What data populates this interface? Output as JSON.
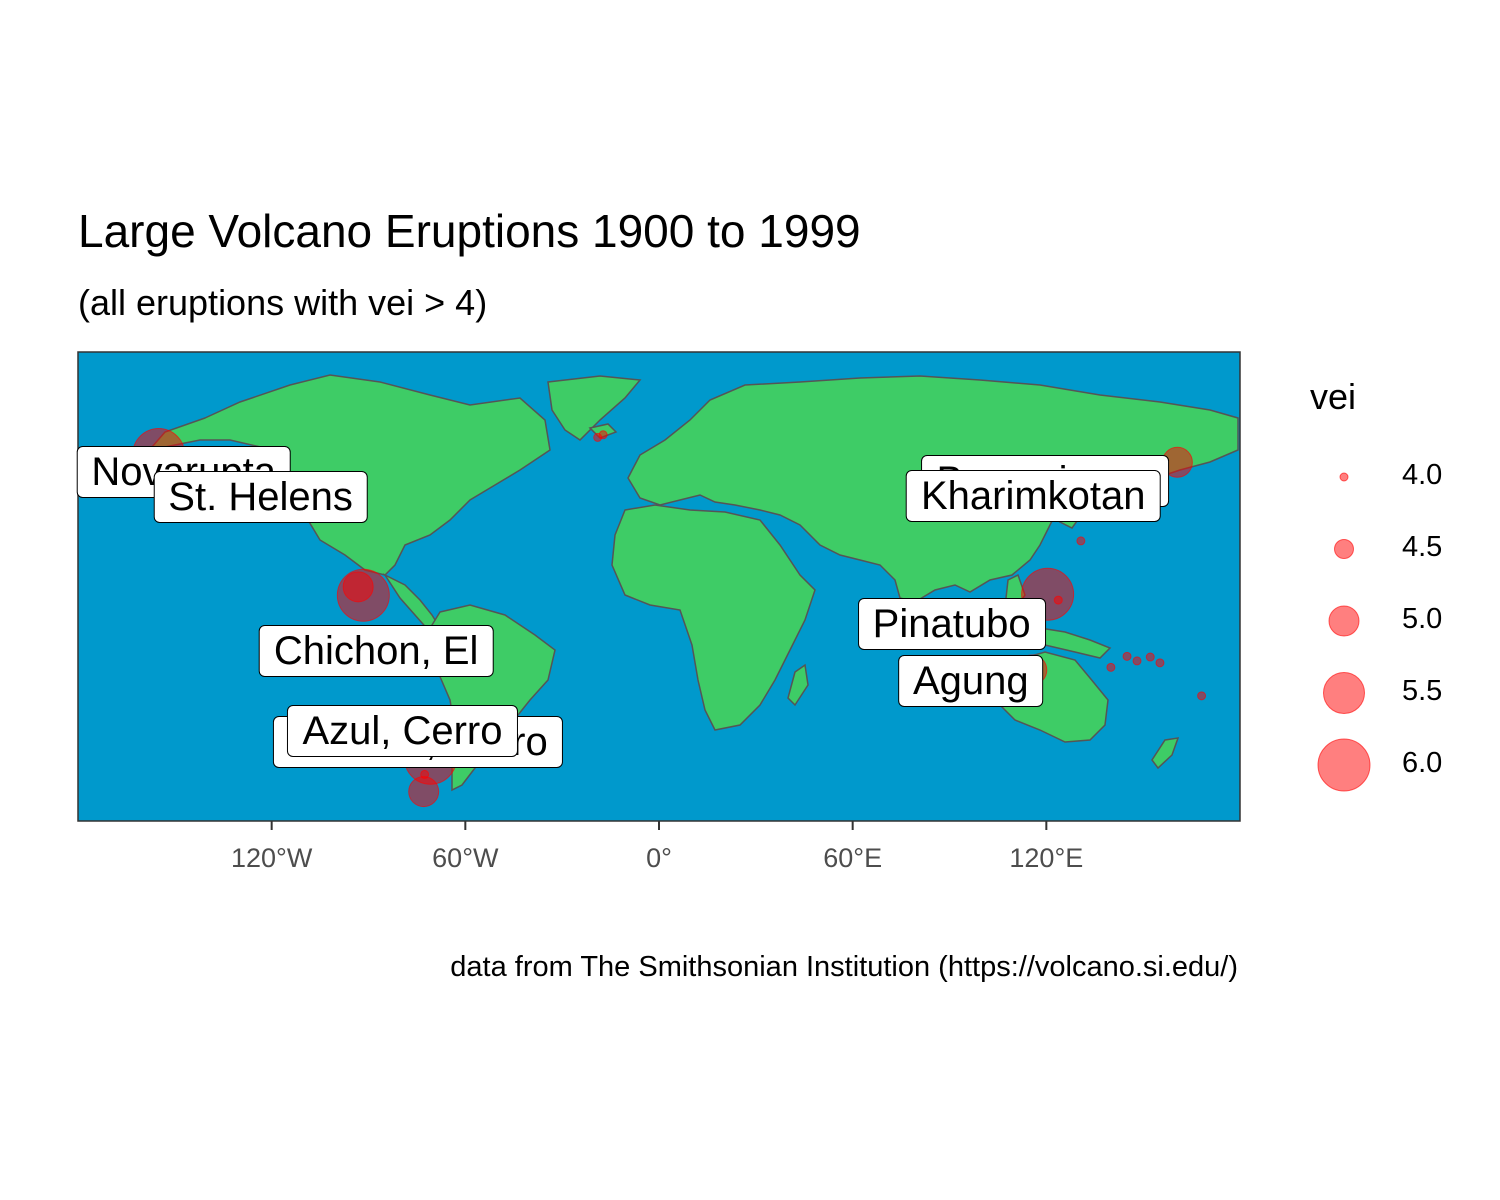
{
  "chart_data": {
    "type": "scatter",
    "title": "Large Volcano Eruptions 1900 to 1999",
    "subtitle": "(all eruptions with vei > 4)",
    "caption": "data from The Smithsonian Institution (https://volcano.si.edu/)",
    "x_range": [
      -180,
      180
    ],
    "y_range": [
      -55,
      90
    ],
    "x_ticks": [
      {
        "value": -120,
        "label": "120°W"
      },
      {
        "value": -60,
        "label": "60°W"
      },
      {
        "value": 0,
        "label": "0°"
      },
      {
        "value": 60,
        "label": "60°E"
      },
      {
        "value": 120,
        "label": "120°E"
      }
    ],
    "colors": {
      "ocean": "#0099cc",
      "land": "#3ecc66",
      "border": "#555555",
      "point": "#ff0000"
    },
    "size_legend": {
      "title": "vei",
      "values": [
        "4.0",
        "4.5",
        "5.0",
        "5.5",
        "6.0"
      ]
    },
    "labels": [
      {
        "name": "Novarupta",
        "lon": -155,
        "lat": 58.3,
        "vei": 6
      },
      {
        "name": "St. Helens",
        "lon": -122.2,
        "lat": 46.2,
        "vei": 5
      },
      {
        "name": "Chichon, El",
        "lon": -93.2,
        "lat": 17.4,
        "vei": 5
      },
      {
        "name": "Azul, Cerro",
        "lon": -70.8,
        "lat": -35.6,
        "vei": 6
      },
      {
        "name": "Hudson, Cerro",
        "lon": -72.9,
        "lat": -45.9,
        "vei": 5
      },
      {
        "name": "Bezymianny",
        "lon": 160.6,
        "lat": 55.9,
        "vei": 5
      },
      {
        "name": "Kharimkotan",
        "lon": 152.2,
        "lat": 49.1,
        "vei": 5
      },
      {
        "name": "Pinatubo",
        "lon": 120.4,
        "lat": 15.1,
        "vei": 6
      },
      {
        "name": "Agung",
        "lon": 115.5,
        "lat": -8.3,
        "vei": 5
      }
    ],
    "points": [
      {
        "lon": -155.0,
        "lat": 58.3,
        "vei": 6
      },
      {
        "lon": -122.2,
        "lat": 46.2,
        "vei": 5
      },
      {
        "lon": -91.6,
        "lat": 14.8,
        "vei": 6
      },
      {
        "lon": -93.2,
        "lat": 17.4,
        "vei": 5
      },
      {
        "lon": -91.5,
        "lat": -0.4,
        "vei": 4
      },
      {
        "lon": -77.4,
        "lat": -1.5,
        "vei": 4
      },
      {
        "lon": -70.8,
        "lat": -35.6,
        "vei": 6
      },
      {
        "lon": -72.9,
        "lat": -45.9,
        "vei": 5
      },
      {
        "lon": -72.6,
        "lat": -40.6,
        "vei": 4
      },
      {
        "lon": -19.0,
        "lat": 63.6,
        "vei": 4
      },
      {
        "lon": -17.3,
        "lat": 64.4,
        "vei": 4
      },
      {
        "lon": 160.6,
        "lat": 55.9,
        "vei": 5
      },
      {
        "lon": 152.2,
        "lat": 49.1,
        "vei": 5
      },
      {
        "lon": 153.3,
        "lat": 48.9,
        "vei": 4
      },
      {
        "lon": 143.0,
        "lat": 42.5,
        "vei": 4
      },
      {
        "lon": 141.3,
        "lat": 42.7,
        "vei": 4
      },
      {
        "lon": 130.7,
        "lat": 31.6,
        "vei": 4
      },
      {
        "lon": 120.4,
        "lat": 15.1,
        "vei": 6
      },
      {
        "lon": 123.7,
        "lat": 13.3,
        "vei": 4
      },
      {
        "lon": 115.5,
        "lat": -8.3,
        "vei": 5
      },
      {
        "lon": 110.4,
        "lat": -7.5,
        "vei": 4
      },
      {
        "lon": 145.0,
        "lat": -4.1,
        "vei": 4
      },
      {
        "lon": 148.1,
        "lat": -5.5,
        "vei": 4
      },
      {
        "lon": 152.2,
        "lat": -4.3,
        "vei": 4
      },
      {
        "lon": 155.2,
        "lat": -6.1,
        "vei": 4
      },
      {
        "lon": 140.0,
        "lat": -7.5,
        "vei": 4
      },
      {
        "lon": 168.1,
        "lat": -16.3,
        "vei": 4
      }
    ]
  }
}
